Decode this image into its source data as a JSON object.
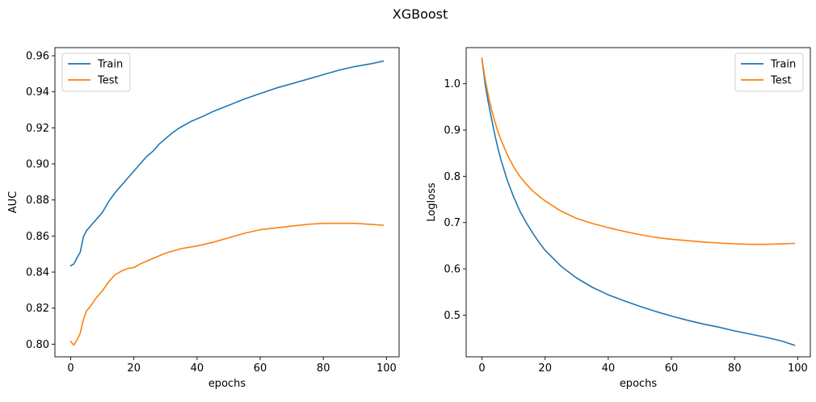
{
  "figure": {
    "title": "XGBoost"
  },
  "colors": {
    "train": "#1f77b4",
    "test": "#ff7f0e"
  },
  "chart_data": [
    {
      "type": "line",
      "xlabel": "epochs",
      "ylabel": "AUC",
      "xlim": [
        -5,
        104
      ],
      "ylim": [
        0.793,
        0.9645
      ],
      "xticks": [
        0,
        20,
        40,
        60,
        80,
        100
      ],
      "xtick_labels": [
        "0",
        "20",
        "40",
        "60",
        "80",
        "100"
      ],
      "yticks": [
        0.8,
        0.82,
        0.84,
        0.86,
        0.88,
        0.9,
        0.92,
        0.94,
        0.96
      ],
      "ytick_labels": [
        "0.80",
        "0.82",
        "0.84",
        "0.86",
        "0.88",
        "0.90",
        "0.92",
        "0.94",
        "0.96"
      ],
      "legend": "top-left",
      "grid": false,
      "series": [
        {
          "name": "Train",
          "x": [
            0,
            1,
            2,
            3,
            4,
            5,
            6,
            8,
            10,
            12,
            14,
            16,
            18,
            20,
            22,
            24,
            26,
            28,
            30,
            32,
            34,
            36,
            38,
            40,
            42,
            45,
            50,
            55,
            60,
            65,
            70,
            75,
            80,
            85,
            90,
            95,
            99
          ],
          "y": [
            0.8435,
            0.8445,
            0.848,
            0.851,
            0.8595,
            0.863,
            0.865,
            0.869,
            0.873,
            0.879,
            0.884,
            0.888,
            0.892,
            0.896,
            0.9,
            0.904,
            0.907,
            0.911,
            0.914,
            0.917,
            0.9195,
            0.9215,
            0.9235,
            0.925,
            0.9265,
            0.929,
            0.9325,
            0.936,
            0.939,
            0.942,
            0.9445,
            0.947,
            0.9495,
            0.952,
            0.954,
            0.9555,
            0.957
          ]
        },
        {
          "name": "Test",
          "x": [
            0,
            1,
            2,
            3,
            4,
            5,
            6,
            8,
            10,
            12,
            14,
            16,
            18,
            20,
            22,
            24,
            26,
            28,
            30,
            32,
            35,
            40,
            45,
            50,
            55,
            60,
            65,
            70,
            75,
            80,
            85,
            90,
            95,
            99
          ],
          "y": [
            0.8015,
            0.7995,
            0.8025,
            0.806,
            0.8135,
            0.8185,
            0.8205,
            0.8255,
            0.8295,
            0.8345,
            0.8385,
            0.8405,
            0.842,
            0.8425,
            0.8445,
            0.846,
            0.8475,
            0.849,
            0.8505,
            0.8515,
            0.853,
            0.8545,
            0.8565,
            0.859,
            0.8615,
            0.8635,
            0.8645,
            0.8655,
            0.8665,
            0.867,
            0.867,
            0.867,
            0.8665,
            0.866
          ]
        }
      ]
    },
    {
      "type": "line",
      "xlabel": "epochs",
      "ylabel": "Logloss",
      "xlim": [
        -5,
        104
      ],
      "ylim": [
        0.41,
        1.078
      ],
      "xticks": [
        0,
        20,
        40,
        60,
        80,
        100
      ],
      "xtick_labels": [
        "0",
        "20",
        "40",
        "60",
        "80",
        "100"
      ],
      "yticks": [
        0.5,
        0.6,
        0.7,
        0.8,
        0.9,
        1.0
      ],
      "ytick_labels": [
        "0.5",
        "0.6",
        "0.7",
        "0.8",
        "0.9",
        "1.0"
      ],
      "legend": "top-right",
      "grid": false,
      "series": [
        {
          "name": "Train",
          "x": [
            0,
            1,
            2,
            3,
            4,
            5,
            6,
            8,
            10,
            12,
            14,
            16,
            18,
            20,
            25,
            30,
            35,
            40,
            45,
            50,
            55,
            60,
            65,
            70,
            75,
            80,
            85,
            90,
            95,
            99
          ],
          "y": [
            1.055,
            1.0,
            0.96,
            0.925,
            0.892,
            0.862,
            0.836,
            0.792,
            0.756,
            0.725,
            0.7,
            0.678,
            0.658,
            0.64,
            0.606,
            0.58,
            0.56,
            0.544,
            0.531,
            0.519,
            0.508,
            0.498,
            0.489,
            0.481,
            0.474,
            0.466,
            0.459,
            0.452,
            0.444,
            0.435
          ]
        },
        {
          "name": "Test",
          "x": [
            0,
            1,
            2,
            3,
            4,
            5,
            6,
            8,
            10,
            12,
            14,
            16,
            18,
            20,
            25,
            30,
            35,
            40,
            45,
            50,
            55,
            60,
            65,
            70,
            75,
            80,
            85,
            90,
            95,
            99
          ],
          "y": [
            1.055,
            1.01,
            0.975,
            0.945,
            0.92,
            0.898,
            0.879,
            0.847,
            0.821,
            0.8,
            0.783,
            0.769,
            0.757,
            0.747,
            0.725,
            0.709,
            0.698,
            0.689,
            0.681,
            0.674,
            0.668,
            0.664,
            0.661,
            0.658,
            0.656,
            0.654,
            0.653,
            0.653,
            0.654,
            0.655
          ]
        }
      ]
    }
  ]
}
